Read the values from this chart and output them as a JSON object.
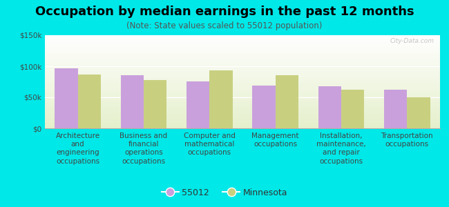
{
  "title": "Occupation by median earnings in the past 12 months",
  "subtitle": "(Note: State values scaled to 55012 population)",
  "categories": [
    "Architecture\nand\nengineering\noccupations",
    "Business and\nfinancial\noperations\noccupations",
    "Computer and\nmathematical\noccupations",
    "Management\noccupations",
    "Installation,\nmaintenance,\nand repair\noccupations",
    "Transportation\noccupations"
  ],
  "values_55012": [
    97000,
    85000,
    76000,
    69000,
    68000,
    62000
  ],
  "values_minnesota": [
    87000,
    78000,
    93000,
    86000,
    62000,
    50000
  ],
  "color_55012": "#c9a0dc",
  "color_minnesota": "#c8d080",
  "background_outer": "#00e8e8",
  "ylim": [
    0,
    150000
  ],
  "yticks": [
    0,
    50000,
    100000,
    150000
  ],
  "ytick_labels": [
    "$0",
    "$50k",
    "$100k",
    "$150k"
  ],
  "legend_label_55012": "55012",
  "legend_label_minnesota": "Minnesota",
  "bar_width": 0.35,
  "title_fontsize": 13,
  "subtitle_fontsize": 8.5,
  "tick_fontsize": 7.5,
  "legend_fontsize": 9
}
